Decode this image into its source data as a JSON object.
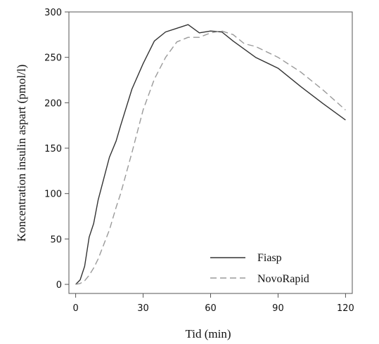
{
  "chart_data": {
    "type": "line",
    "title": "",
    "xlabel": "Tid (min)",
    "ylabel": "Koncentration insulin aspart (pmol/l)",
    "xlim": [
      -3,
      123
    ],
    "ylim": [
      -10,
      300
    ],
    "x_ticks": [
      0,
      30,
      60,
      90,
      120
    ],
    "y_ticks": [
      0,
      50,
      100,
      150,
      200,
      250,
      300
    ],
    "grid": false,
    "legend_position": "bottom-right",
    "series": [
      {
        "name": "Fiasp",
        "style": "solid",
        "color": "#333333",
        "x": [
          0,
          2,
          4,
          6,
          8,
          10,
          15,
          18,
          20,
          25,
          30,
          35,
          40,
          45,
          50,
          55,
          60,
          65,
          70,
          80,
          90,
          100,
          110,
          120
        ],
        "y": [
          0,
          5,
          20,
          52,
          67,
          93,
          140,
          158,
          175,
          215,
          243,
          268,
          278,
          282,
          286,
          277,
          279,
          278,
          268,
          250,
          238,
          218,
          199,
          181
        ]
      },
      {
        "name": "NovoRapid",
        "style": "dashed",
        "color": "#9a9a9a",
        "x": [
          0,
          2,
          4,
          6,
          8,
          10,
          15,
          18,
          20,
          25,
          30,
          35,
          40,
          45,
          50,
          55,
          60,
          65,
          70,
          75,
          80,
          90,
          100,
          110,
          120
        ],
        "y": [
          0,
          1,
          4,
          10,
          18,
          28,
          60,
          85,
          100,
          145,
          192,
          226,
          250,
          267,
          272,
          272,
          277,
          279,
          275,
          265,
          262,
          250,
          234,
          214,
          192
        ]
      }
    ]
  }
}
